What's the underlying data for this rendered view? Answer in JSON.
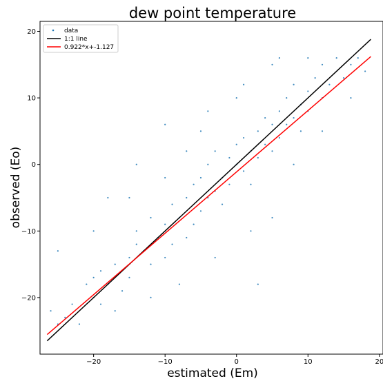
{
  "chart_data": {
    "type": "scatter",
    "title": "dew point temperature",
    "xlabel": "estimated (Em)",
    "ylabel": "observed (Eo)",
    "xlim": [
      -27.5,
      20.5
    ],
    "ylim": [
      -28.5,
      21.5
    ],
    "xticks": [
      -20,
      -10,
      0,
      10,
      20
    ],
    "yticks": [
      -20,
      -10,
      0,
      10,
      20
    ],
    "grid": false,
    "legend_position": "top-left",
    "series": [
      {
        "name": "data",
        "kind": "scatter",
        "color": "#1f77b4",
        "sample_points": [
          [
            -26,
            -22
          ],
          [
            -25,
            -24
          ],
          [
            -24,
            -23
          ],
          [
            -23,
            -21
          ],
          [
            -22,
            -24
          ],
          [
            -21,
            -18
          ],
          [
            -20,
            -20
          ],
          [
            -20,
            -17
          ],
          [
            -19,
            -21
          ],
          [
            -19,
            -16
          ],
          [
            -18,
            -18
          ],
          [
            -17,
            -15
          ],
          [
            -17,
            -22
          ],
          [
            -16,
            -19
          ],
          [
            -15,
            -14
          ],
          [
            -15,
            -17
          ],
          [
            -14,
            -12
          ],
          [
            -14,
            -10
          ],
          [
            -13,
            -13
          ],
          [
            -12,
            -15
          ],
          [
            -12,
            -8
          ],
          [
            -11,
            -11
          ],
          [
            -10,
            -9
          ],
          [
            -10,
            -14
          ],
          [
            -9,
            -6
          ],
          [
            -9,
            -12
          ],
          [
            -8,
            -8
          ],
          [
            -7,
            -5
          ],
          [
            -7,
            -11
          ],
          [
            -6,
            -3
          ],
          [
            -6,
            -9
          ],
          [
            -5,
            -7
          ],
          [
            -5,
            -2
          ],
          [
            -4,
            -5
          ],
          [
            -4,
            0
          ],
          [
            -3,
            -4
          ],
          [
            -3,
            2
          ],
          [
            -2,
            -2
          ],
          [
            -2,
            -6
          ],
          [
            -1,
            1
          ],
          [
            -1,
            -3
          ],
          [
            0,
            0
          ],
          [
            0,
            3
          ],
          [
            1,
            -1
          ],
          [
            1,
            4
          ],
          [
            2,
            2
          ],
          [
            2,
            -3
          ],
          [
            3,
            5
          ],
          [
            3,
            1
          ],
          [
            4,
            3
          ],
          [
            4,
            7
          ],
          [
            5,
            2
          ],
          [
            5,
            6
          ],
          [
            6,
            8
          ],
          [
            6,
            4
          ],
          [
            7,
            6
          ],
          [
            7,
            10
          ],
          [
            8,
            7
          ],
          [
            8,
            12
          ],
          [
            9,
            9
          ],
          [
            9,
            5
          ],
          [
            10,
            11
          ],
          [
            10,
            8
          ],
          [
            11,
            13
          ],
          [
            12,
            10
          ],
          [
            12,
            15
          ],
          [
            13,
            12
          ],
          [
            14,
            16
          ],
          [
            15,
            13
          ],
          [
            16,
            15
          ],
          [
            17,
            16
          ],
          [
            18,
            14
          ],
          [
            -18,
            -5
          ],
          [
            -14,
            0
          ],
          [
            -10,
            6
          ],
          [
            -7,
            2
          ],
          [
            -4,
            8
          ],
          [
            1,
            12
          ],
          [
            6,
            16
          ],
          [
            10,
            16
          ],
          [
            -25,
            -13
          ],
          [
            -20,
            -10
          ],
          [
            -15,
            -5
          ],
          [
            -10,
            -2
          ],
          [
            -5,
            5
          ],
          [
            0,
            10
          ],
          [
            5,
            15
          ],
          [
            -12,
            -20
          ],
          [
            -8,
            -18
          ],
          [
            -3,
            -14
          ],
          [
            2,
            -10
          ],
          [
            5,
            -8
          ],
          [
            3,
            -18
          ],
          [
            8,
            0
          ],
          [
            12,
            5
          ],
          [
            16,
            10
          ]
        ]
      },
      {
        "name": "1:1 line",
        "kind": "line",
        "color": "#000000",
        "x": [
          -26.5,
          18.8
        ],
        "y": [
          -26.5,
          18.8
        ]
      },
      {
        "name": "0.922*x+-1.127",
        "kind": "line",
        "color": "#ff0000",
        "x": [
          -26.5,
          18.8
        ],
        "y": [
          -25.56,
          16.21
        ]
      }
    ]
  }
}
